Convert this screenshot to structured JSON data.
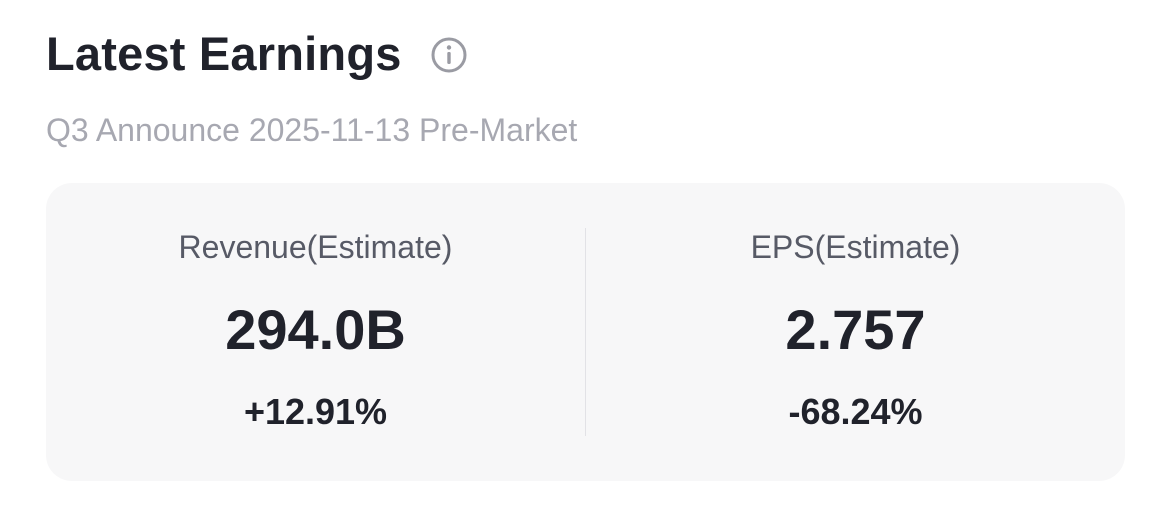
{
  "header": {
    "title": "Latest Earnings",
    "info_icon": "info-circle-icon"
  },
  "subtitle": "Q3 Announce 2025-11-13 Pre-Market",
  "metrics": [
    {
      "label": "Revenue(Estimate)",
      "value": "294.0B",
      "change": "+12.91%"
    },
    {
      "label": "EPS(Estimate)",
      "value": "2.757",
      "change": "-68.24%"
    }
  ],
  "colors": {
    "title": "#20222b",
    "subtitle": "#a7a8b1",
    "card_background": "#f7f7f8",
    "label": "#575a66",
    "icon": "#9a9ba3"
  }
}
